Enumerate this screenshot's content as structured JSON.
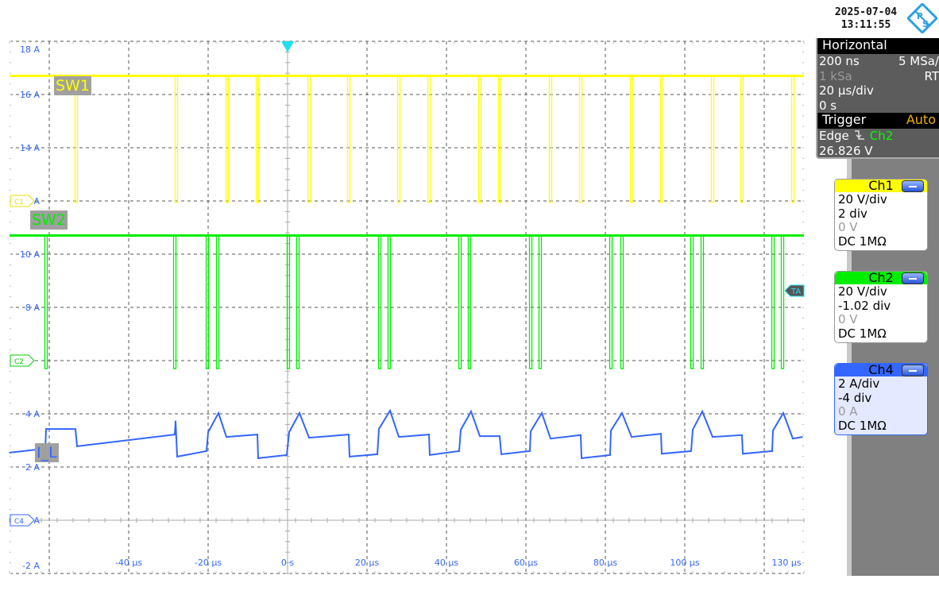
{
  "header": {
    "date": "2025-07-04",
    "time": "13:11:55",
    "logo_text": "R&S"
  },
  "horizontal": {
    "title": "Horizontal",
    "resolution": "200 ns",
    "sample_rate": "5 MSa/",
    "record_length": "1 kSa",
    "mode": "RT",
    "timebase": "20 µs/div",
    "position": "0 s"
  },
  "trigger": {
    "title": "Trigger",
    "mode": "Auto",
    "type": "Edge",
    "slope_icon": "falling-edge-icon",
    "source": "Ch2",
    "level": "26.826 V"
  },
  "channels": [
    {
      "name": "Ch1",
      "color": "#ffff00",
      "scale": "20 V/div",
      "position": "2 div",
      "offset": "0 V",
      "coupling": "DC 1MΩ",
      "marker": "C1",
      "label": "SW1"
    },
    {
      "name": "Ch2",
      "color": "#00ee00",
      "scale": "20 V/div",
      "position": "-1.02 div",
      "offset": "0 V",
      "coupling": "DC 1MΩ",
      "marker": "C2",
      "label": "SW2"
    },
    {
      "name": "Ch4",
      "color": "#3366ff",
      "scale": "2 A/div",
      "position": "-4 div",
      "offset": "0 A",
      "coupling": "DC 1MΩ",
      "marker": "C4",
      "label": "I_L"
    }
  ],
  "trigger_marker": "TA",
  "chart_data": {
    "type": "line",
    "xlabel": "",
    "ylabel": "",
    "xlim_us": [
      -70,
      130
    ],
    "ylim_A": [
      -2,
      18
    ],
    "grid": true,
    "x_ticks": [
      "-40 µs",
      "-20 µs",
      "0 s",
      "20 µs",
      "40 µs",
      "60 µs",
      "80 µs",
      "100 µs",
      "130 µs"
    ],
    "y_ticks": [
      "18 A",
      "16 A",
      "14 A",
      "A",
      "10 A",
      "8 A",
      "4 A",
      "2 A",
      "A",
      "-2 A"
    ],
    "series": [
      {
        "name": "SW1",
        "channel": "Ch1",
        "unit": "V",
        "high": 47,
        "low": -0.5,
        "dip_times_us": [
          -53.2,
          -28,
          -15.2,
          -7.6,
          5.4,
          15.4,
          28,
          35.6,
          48.4,
          53.4,
          66.2,
          73.8,
          86.6,
          94.2,
          107,
          114.4,
          127.2
        ]
      },
      {
        "name": "SW2",
        "channel": "Ch2",
        "unit": "V",
        "high": 47,
        "low": -3,
        "dip_times_us": [
          -60.8,
          -28.4,
          -20.2,
          -17.6,
          0.2,
          2.6,
          23.2,
          25.6,
          43.4,
          45.8,
          61.2,
          63.6,
          81.4,
          84.2,
          101.8,
          104.4,
          122.2,
          124.6
        ]
      },
      {
        "name": "I_L",
        "channel": "Ch4",
        "unit": "A",
        "points": [
          [
            -70,
            2.54
          ],
          [
            -61,
            2.69
          ],
          [
            -60.8,
            3.43
          ],
          [
            -53.4,
            3.43
          ],
          [
            -53,
            2.78
          ],
          [
            -28.4,
            3.22
          ],
          [
            -28.2,
            3.73
          ],
          [
            -27.8,
            2.39
          ],
          [
            -20.4,
            2.6
          ],
          [
            -20,
            3.31
          ],
          [
            -17.4,
            4.03
          ],
          [
            -15.4,
            3.13
          ],
          [
            -7.6,
            3.22
          ],
          [
            -7.4,
            2.33
          ],
          [
            -0.2,
            2.45
          ],
          [
            0.4,
            3.31
          ],
          [
            3,
            4.03
          ],
          [
            5.4,
            3.1
          ],
          [
            15.4,
            3.22
          ],
          [
            15.6,
            2.39
          ],
          [
            22.6,
            2.48
          ],
          [
            23,
            3.43
          ],
          [
            25.8,
            4.12
          ],
          [
            28,
            3.13
          ],
          [
            35.6,
            3.22
          ],
          [
            35.8,
            2.45
          ],
          [
            43.2,
            2.6
          ],
          [
            43.6,
            3.4
          ],
          [
            46.2,
            4.09
          ],
          [
            48.4,
            3.16
          ],
          [
            53.4,
            3.16
          ],
          [
            53.8,
            2.48
          ],
          [
            61,
            2.6
          ],
          [
            61.2,
            3.34
          ],
          [
            64,
            4.03
          ],
          [
            66.2,
            3.07
          ],
          [
            73.8,
            3.2
          ],
          [
            74,
            2.33
          ],
          [
            81.2,
            2.45
          ],
          [
            81.4,
            3.37
          ],
          [
            84.2,
            4.03
          ],
          [
            86.6,
            3.13
          ],
          [
            94,
            3.25
          ],
          [
            94.2,
            2.5
          ],
          [
            101.6,
            2.6
          ],
          [
            102,
            3.4
          ],
          [
            104.4,
            4.09
          ],
          [
            107,
            3.13
          ],
          [
            114.4,
            3.2
          ],
          [
            114.6,
            2.5
          ],
          [
            122,
            2.6
          ],
          [
            122.2,
            3.37
          ],
          [
            124.8,
            4.03
          ],
          [
            127.2,
            3.07
          ],
          [
            129.6,
            3.13
          ]
        ]
      }
    ]
  }
}
